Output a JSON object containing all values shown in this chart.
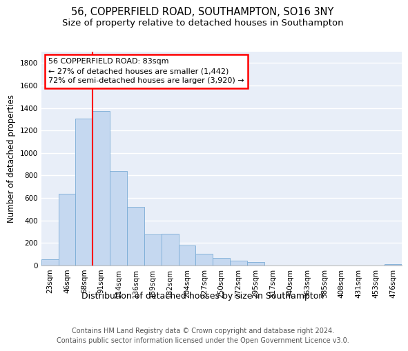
{
  "title": "56, COPPERFIELD ROAD, SOUTHAMPTON, SO16 3NY",
  "subtitle": "Size of property relative to detached houses in Southampton",
  "xlabel": "Distribution of detached houses by size in Southampton",
  "ylabel": "Number of detached properties",
  "categories": [
    "23sqm",
    "46sqm",
    "68sqm",
    "91sqm",
    "114sqm",
    "136sqm",
    "159sqm",
    "182sqm",
    "204sqm",
    "227sqm",
    "250sqm",
    "272sqm",
    "295sqm",
    "317sqm",
    "340sqm",
    "363sqm",
    "385sqm",
    "408sqm",
    "431sqm",
    "453sqm",
    "476sqm"
  ],
  "values": [
    55,
    640,
    1305,
    1370,
    840,
    520,
    275,
    280,
    175,
    105,
    65,
    40,
    30,
    0,
    0,
    0,
    0,
    0,
    0,
    0,
    15
  ],
  "bar_color": "#c5d8f0",
  "bar_edge_color": "#7aacd6",
  "vline_color": "red",
  "vline_x": 2.5,
  "annotation_line1": "56 COPPERFIELD ROAD: 83sqm",
  "annotation_line2": "← 27% of detached houses are smaller (1,442)",
  "annotation_line3": "72% of semi-detached houses are larger (3,920) →",
  "annotation_box_color": "red",
  "annotation_facecolor": "white",
  "ylim": [
    0,
    1900
  ],
  "yticks": [
    0,
    200,
    400,
    600,
    800,
    1000,
    1200,
    1400,
    1600,
    1800
  ],
  "bg_color": "#e8eef8",
  "grid_color": "white",
  "footnote": "Contains HM Land Registry data © Crown copyright and database right 2024.\nContains public sector information licensed under the Open Government Licence v3.0.",
  "title_fontsize": 10.5,
  "subtitle_fontsize": 9.5,
  "xlabel_fontsize": 9,
  "ylabel_fontsize": 8.5,
  "tick_fontsize": 7.5,
  "annot_fontsize": 8,
  "footnote_fontsize": 7
}
